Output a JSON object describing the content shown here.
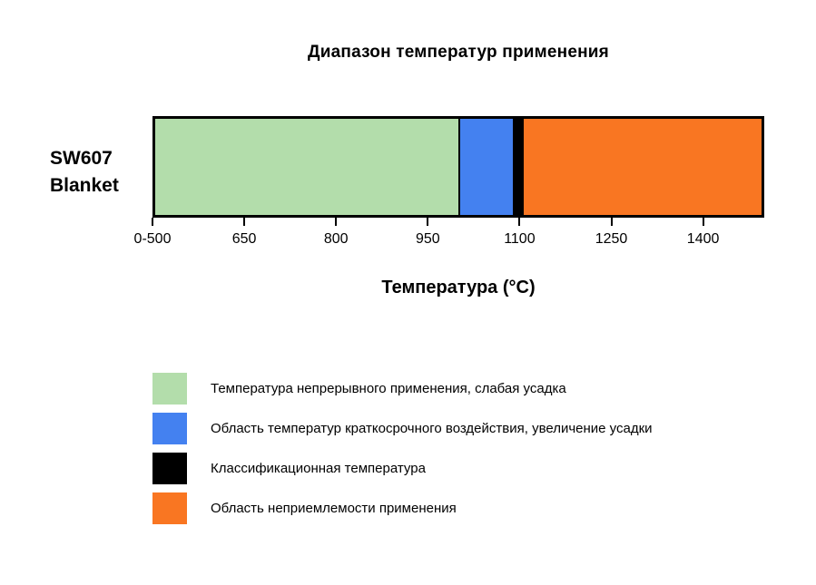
{
  "chart_data": {
    "type": "bar",
    "variant": "horizontal-stacked-range",
    "title": "Диапазон температур применения",
    "category": "SW607 Blanket",
    "category_lines": [
      "SW607",
      "Blanket"
    ],
    "xlabel": "Температура (°C)",
    "x_domain": [
      500,
      1500
    ],
    "grid": false,
    "legend_position": "bottom-left",
    "ticks": [
      {
        "value": 500,
        "label": "0-500"
      },
      {
        "value": 650,
        "label": "650"
      },
      {
        "value": 800,
        "label": "800"
      },
      {
        "value": 950,
        "label": "950"
      },
      {
        "value": 1100,
        "label": "1100"
      },
      {
        "value": 1250,
        "label": "1250"
      },
      {
        "value": 1400,
        "label": "1400"
      }
    ],
    "segments": [
      {
        "name": "continuous-use",
        "label": "Температура непрерывного применения, слабая усадка",
        "color": "#b3ddab",
        "from": 500,
        "to": 1000
      },
      {
        "name": "short-term-exposure",
        "label": "Область температур краткосрочного воздействия, увеличение усадки",
        "color": "#4481f0",
        "from": 1000,
        "to": 1090
      },
      {
        "name": "classification-temperature",
        "label": "Классификационная температура",
        "color": "#000000",
        "from": 1090,
        "to": 1105,
        "value": 1100
      },
      {
        "name": "unsuitable-region",
        "label": "Область неприемлемости применения",
        "color": "#f97622",
        "from": 1105,
        "to": 1500
      }
    ]
  }
}
